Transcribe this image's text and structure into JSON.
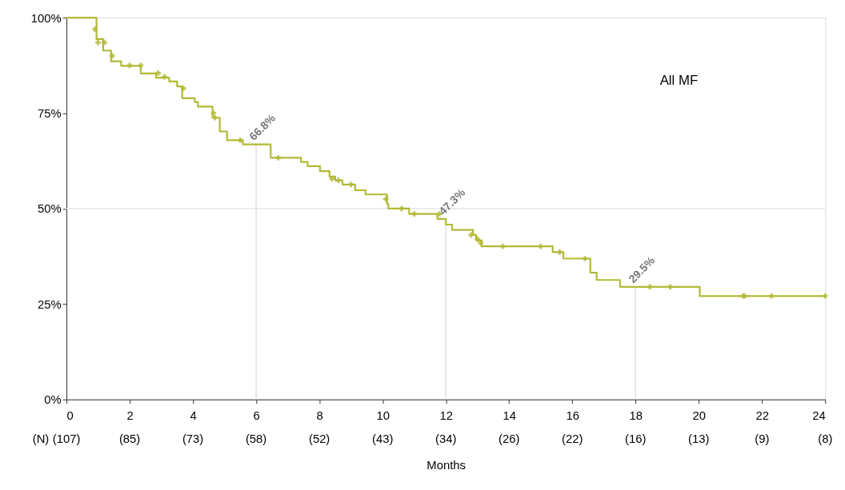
{
  "chart_data": {
    "type": "step",
    "xlabel": "Months",
    "xlim": [
      0,
      24
    ],
    "ylim": [
      0,
      100
    ],
    "xticks": [
      0,
      2,
      4,
      6,
      8,
      10,
      12,
      14,
      16,
      18,
      20,
      22,
      24
    ],
    "yticks": [
      {
        "value": 0,
        "label": "0%"
      },
      {
        "value": 25,
        "label": "25%"
      },
      {
        "value": 50,
        "label": "50%"
      },
      {
        "value": 75,
        "label": "75%"
      },
      {
        "value": 100,
        "label": "100%"
      }
    ],
    "grid": false,
    "ref_lines": [
      {
        "axis": "y",
        "value": 50,
        "color": "#e6e6e6"
      }
    ],
    "annotations": [
      "All MF",
      "(N)",
      "(107)",
      "(85)",
      "(73)",
      "(58)",
      "(52)",
      "(43)",
      "(34)",
      "(26)",
      "(22)",
      "(16)",
      "(13)",
      "(9)",
      "(8)",
      {
        "text": "66.8%",
        "x": 6,
        "y": 66.8
      },
      {
        "text": "47.3%",
        "x": 12,
        "y": 47.3
      },
      {
        "text": "29.5%",
        "x": 18,
        "y": 29.5
      }
    ],
    "series": [
      {
        "color": "#b2b935",
        "line_style": "solid",
        "x": [
          0,
          0.95,
          1.16,
          1.41,
          1.73,
          2.35,
          2.83,
          3.25,
          3.5,
          3.66,
          4.06,
          4.16,
          4.62,
          4.85,
          5.08,
          5.58,
          6.46,
          7.42,
          7.63,
          8.02,
          8.32,
          8.5,
          8.73,
          9.13,
          9.46,
          10.14,
          10.18,
          10.84,
          11.73,
          12.0,
          12.2,
          12.86,
          12.96,
          13.13,
          15.38,
          15.72,
          16.57,
          16.77,
          17.51,
          20.03,
          24.0
        ],
        "values": [
          100,
          94.4,
          91.4,
          88.6,
          87.4,
          85.4,
          84.3,
          83.3,
          82.0,
          78.9,
          77.9,
          76.7,
          73.8,
          70.2,
          67.9,
          66.8,
          63.3,
          62.2,
          61.1,
          59.8,
          58.4,
          57.4,
          56.3,
          54.8,
          53.7,
          51.2,
          50.0,
          48.6,
          47.3,
          45.8,
          44.4,
          43.1,
          41.7,
          40.1,
          38.6,
          36.9,
          33.2,
          31.3,
          29.5,
          27.1,
          27.1
        ]
      },
      {
        "type": "scatter",
        "color": "#b2b935",
        "marker": "cross",
        "x": [
          0.9,
          1.0,
          1.2,
          1.45,
          2.0,
          2.35,
          2.9,
          3.1,
          3.7,
          4.65,
          4.7,
          5.5,
          6.7,
          8.4,
          8.6,
          9.0,
          10.1,
          10.6,
          11.0,
          11.8,
          12.8,
          13.0,
          13.1,
          13.8,
          15.0,
          15.6,
          16.4,
          18.45,
          19.1,
          21.4,
          21.45,
          22.3,
          24.0
        ],
        "values": [
          97,
          93.5,
          93.5,
          90,
          87.5,
          87.5,
          85.5,
          84.5,
          81.5,
          75,
          73.8,
          67.9,
          63.3,
          57.8,
          57.4,
          56.3,
          52.5,
          50,
          48.6,
          48.6,
          43.1,
          42,
          41,
          40.1,
          40.1,
          38.6,
          36.9,
          29.5,
          29.5,
          27.1,
          27.1,
          27.1,
          27.1
        ]
      }
    ]
  }
}
